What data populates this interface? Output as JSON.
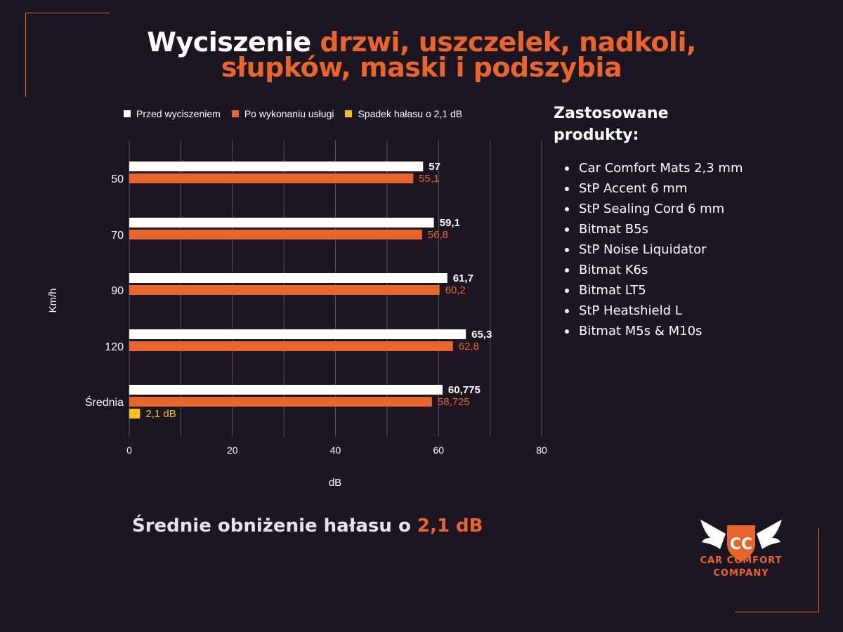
{
  "title": {
    "white": "Wyciszenie ",
    "orange_line1": "drzwi, uszczelek, nadkoli,",
    "orange_line2": "słupków, maski i podszybia"
  },
  "colors": {
    "accent": "#e8662b",
    "white": "#ffffff",
    "yellow": "#f5c018",
    "background": "#1b1622"
  },
  "chart_data": {
    "type": "bar",
    "orientation": "horizontal",
    "categories": [
      "50",
      "70",
      "90",
      "120",
      "Średnia"
    ],
    "series": [
      {
        "name": "Przed wyciszeniem",
        "color": "#ffffff",
        "values": [
          57,
          59.1,
          61.7,
          65.3,
          60.775
        ],
        "labels": [
          "57",
          "59,1",
          "61,7",
          "65,3",
          "60,775"
        ]
      },
      {
        "name": "Po wykonaniu usługi",
        "color": "#e8662b",
        "values": [
          55.1,
          56.8,
          60.2,
          62.8,
          58.725
        ],
        "labels": [
          "55,1",
          "56,8",
          "60,2",
          "62,8",
          "58,725"
        ]
      },
      {
        "name": "Spadek hałasu o 2,1 dB",
        "color": "#f5c018",
        "values": [
          null,
          null,
          null,
          null,
          2.1
        ],
        "labels": [
          "",
          "",
          "",
          "",
          "2,1 dB"
        ]
      }
    ],
    "xlabel": "dB",
    "ylabel": "Km/h",
    "xlim": [
      0,
      80
    ],
    "xticks": [
      "0",
      "20",
      "40",
      "60",
      "80"
    ],
    "grid": true,
    "legend": "top"
  },
  "side": {
    "title_line1": "Zastosowane",
    "title_line2": "produkty:",
    "products": [
      "Car Comfort Mats 2,3 mm",
      "StP Accent 6 mm",
      "StP Sealing Cord 6 mm",
      "Bitmat B5s",
      "StP Noise Liquidator",
      "Bitmat K6s",
      "Bitmat LT5",
      "StP Heatshield L",
      "Bitmat M5s & M10s"
    ]
  },
  "summary": {
    "text": "Średnie obniżenie hałasu o ",
    "value": "2,1 dB"
  },
  "logo": {
    "monogram": "CC",
    "line1": "CAR COMFORT",
    "line2": "COMPANY"
  }
}
